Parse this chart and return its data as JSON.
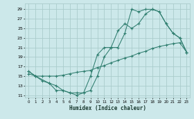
{
  "xlabel": "Humidex (Indice chaleur)",
  "bg_color": "#cce8ea",
  "grid_color": "#aacccc",
  "line_color": "#2e7d6e",
  "xlim": [
    -0.5,
    23.5
  ],
  "ylim": [
    10.5,
    30.2
  ],
  "xticks": [
    0,
    1,
    2,
    3,
    4,
    5,
    6,
    7,
    8,
    9,
    10,
    11,
    12,
    13,
    14,
    15,
    16,
    17,
    18,
    19,
    20,
    21,
    22,
    23
  ],
  "yticks": [
    11,
    13,
    15,
    17,
    19,
    21,
    23,
    25,
    27,
    29
  ],
  "line1_x": [
    0,
    1,
    2,
    3,
    4,
    5,
    6,
    7,
    8,
    9,
    10,
    11,
    12,
    13,
    14,
    15,
    16,
    17,
    18,
    19,
    20,
    21,
    22,
    23
  ],
  "line1_y": [
    16,
    15,
    14,
    13.5,
    12,
    12,
    11.5,
    11,
    11.5,
    12,
    15,
    19,
    21,
    24.5,
    26,
    25,
    26,
    28,
    29,
    28.5,
    26,
    24,
    23,
    20
  ],
  "line2_x": [
    0,
    1,
    2,
    3,
    4,
    5,
    6,
    7,
    8,
    9,
    10,
    11,
    12,
    13,
    14,
    15,
    16,
    17,
    18,
    19,
    20,
    21,
    22,
    23
  ],
  "line2_y": [
    15.5,
    15,
    15,
    15,
    15,
    15.2,
    15.5,
    15.8,
    16,
    16.2,
    16.8,
    17.2,
    17.8,
    18.3,
    18.8,
    19.2,
    19.8,
    20.2,
    20.8,
    21.2,
    21.5,
    21.8,
    22,
    20
  ],
  "line3_x": [
    0,
    1,
    3,
    4,
    5,
    6,
    7,
    8,
    9,
    10,
    11,
    12,
    13,
    14,
    15,
    16,
    17,
    18,
    19,
    20,
    21,
    22,
    23
  ],
  "line3_y": [
    16,
    15,
    13.5,
    13,
    12,
    11.5,
    11.5,
    11.5,
    15,
    19.5,
    21,
    21,
    21,
    24,
    29,
    28.5,
    29,
    29,
    28.5,
    26,
    24,
    23,
    20
  ]
}
